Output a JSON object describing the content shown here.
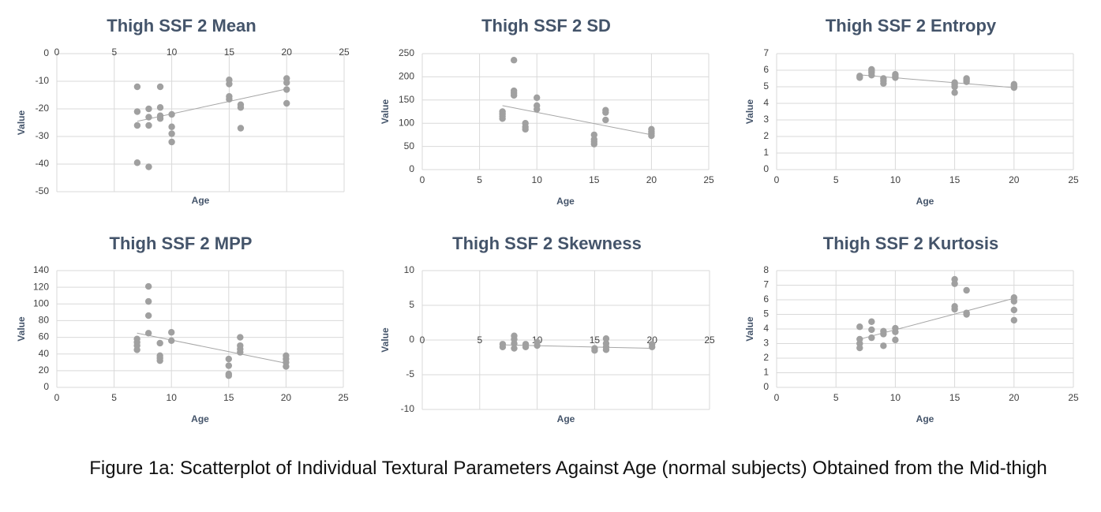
{
  "figure": {
    "caption": "Figure 1a: Scatterplot of Individual Textural Parameters Against Age (normal subjects) Obtained from the Mid-thigh"
  },
  "colors": {
    "point": "#a0a0a0",
    "trend": "#a6a6a6",
    "grid": "#d9d9d9",
    "title": "#44546a"
  },
  "chart_data": [
    {
      "type": "scatter",
      "title": "Thigh SSF 2 Mean",
      "xlabel": "Age",
      "ylabel": "Value",
      "xlim": [
        0,
        25
      ],
      "ylim": [
        -50,
        0
      ],
      "xticks": [
        0,
        5,
        10,
        15,
        20,
        25
      ],
      "yticks": [
        -50,
        -40,
        -30,
        -20,
        -10,
        0
      ],
      "xaxis_at": "top",
      "points": [
        [
          7,
          -12
        ],
        [
          7,
          -21
        ],
        [
          7,
          -26
        ],
        [
          7,
          -39.5
        ],
        [
          8,
          -20
        ],
        [
          8,
          -23
        ],
        [
          8,
          -26
        ],
        [
          8,
          -41
        ],
        [
          9,
          -12
        ],
        [
          9,
          -19.5
        ],
        [
          9,
          -22.5
        ],
        [
          9,
          -23.5
        ],
        [
          10,
          -22
        ],
        [
          10,
          -26.5
        ],
        [
          10,
          -29
        ],
        [
          10,
          -32
        ],
        [
          15,
          -9.5
        ],
        [
          15,
          -11
        ],
        [
          15,
          -15.5
        ],
        [
          15,
          -16.5
        ],
        [
          16,
          -18.5
        ],
        [
          16,
          -19.5
        ],
        [
          16,
          -27
        ],
        [
          20,
          -9
        ],
        [
          20,
          -10.5
        ],
        [
          20,
          -13
        ],
        [
          20,
          -18
        ]
      ],
      "trendline": [
        [
          7,
          -24.5
        ],
        [
          20,
          -12.8
        ]
      ]
    },
    {
      "type": "scatter",
      "title": "Thigh SSF 2 SD",
      "xlabel": "Age",
      "ylabel": "Value",
      "xlim": [
        0,
        25
      ],
      "ylim": [
        0,
        250
      ],
      "xticks": [
        0,
        5,
        10,
        15,
        20,
        25
      ],
      "yticks": [
        0,
        50,
        100,
        150,
        200,
        250
      ],
      "xaxis_at": "bottom",
      "points": [
        [
          7,
          110
        ],
        [
          7,
          115
        ],
        [
          7,
          120
        ],
        [
          7,
          125
        ],
        [
          8,
          160
        ],
        [
          8,
          165
        ],
        [
          8,
          170
        ],
        [
          8,
          236
        ],
        [
          9,
          87
        ],
        [
          9,
          92
        ],
        [
          9,
          100
        ],
        [
          10,
          130
        ],
        [
          10,
          138
        ],
        [
          10,
          155
        ],
        [
          15,
          55
        ],
        [
          15,
          60
        ],
        [
          15,
          65
        ],
        [
          15,
          75
        ],
        [
          16,
          107
        ],
        [
          16,
          123
        ],
        [
          16,
          128
        ],
        [
          20,
          73
        ],
        [
          20,
          78
        ],
        [
          20,
          82
        ],
        [
          20,
          87
        ]
      ],
      "trendline": [
        [
          7,
          138
        ],
        [
          20,
          75
        ]
      ]
    },
    {
      "type": "scatter",
      "title": "Thigh SSF 2 Entropy",
      "xlabel": "Age",
      "ylabel": "Value",
      "xlim": [
        0,
        25
      ],
      "ylim": [
        0,
        7
      ],
      "xticks": [
        0,
        5,
        10,
        15,
        20,
        25
      ],
      "yticks": [
        0,
        1,
        2,
        3,
        4,
        5,
        6,
        7
      ],
      "xaxis_at": "bottom",
      "points": [
        [
          7,
          5.55
        ],
        [
          7,
          5.65
        ],
        [
          8,
          5.7
        ],
        [
          8,
          5.85
        ],
        [
          8,
          5.95
        ],
        [
          8,
          6.05
        ],
        [
          9,
          5.2
        ],
        [
          9,
          5.35
        ],
        [
          9,
          5.5
        ],
        [
          10,
          5.55
        ],
        [
          10,
          5.65
        ],
        [
          10,
          5.75
        ],
        [
          15,
          4.65
        ],
        [
          15,
          5.0
        ],
        [
          15,
          5.15
        ],
        [
          15,
          5.25
        ],
        [
          16,
          5.3
        ],
        [
          16,
          5.4
        ],
        [
          16,
          5.5
        ],
        [
          20,
          4.95
        ],
        [
          20,
          5.05
        ],
        [
          20,
          5.15
        ]
      ],
      "trendline": [
        [
          7,
          5.72
        ],
        [
          20,
          4.95
        ]
      ]
    },
    {
      "type": "scatter",
      "title": "Thigh SSF 2 MPP",
      "xlabel": "Age",
      "ylabel": "Value",
      "xlim": [
        0,
        25
      ],
      "ylim": [
        0,
        140
      ],
      "xticks": [
        0,
        5,
        10,
        15,
        20,
        25
      ],
      "yticks": [
        0,
        20,
        40,
        60,
        80,
        100,
        120,
        140
      ],
      "xaxis_at": "bottom",
      "points": [
        [
          7,
          45
        ],
        [
          7,
          50
        ],
        [
          7,
          54
        ],
        [
          7,
          58
        ],
        [
          8,
          65
        ],
        [
          8,
          86
        ],
        [
          8,
          103
        ],
        [
          8,
          121
        ],
        [
          9,
          32
        ],
        [
          9,
          35
        ],
        [
          9,
          38
        ],
        [
          9,
          53
        ],
        [
          10,
          56
        ],
        [
          10,
          66
        ],
        [
          15,
          14
        ],
        [
          15,
          16
        ],
        [
          15,
          26
        ],
        [
          15,
          34
        ],
        [
          16,
          42
        ],
        [
          16,
          46
        ],
        [
          16,
          50
        ],
        [
          16,
          60
        ],
        [
          20,
          25
        ],
        [
          20,
          30
        ],
        [
          20,
          34
        ],
        [
          20,
          38
        ]
      ],
      "trendline": [
        [
          7,
          65
        ],
        [
          20,
          29
        ]
      ]
    },
    {
      "type": "scatter",
      "title": "Thigh SSF 2 Skewness",
      "xlabel": "Age",
      "ylabel": "Value",
      "xlim": [
        0,
        25
      ],
      "ylim": [
        -10,
        10
      ],
      "xticks": [
        0,
        5,
        10,
        15,
        20,
        25
      ],
      "yticks": [
        -10,
        -5,
        0,
        5,
        10
      ],
      "xaxis_at": "zero",
      "points": [
        [
          7,
          -0.6
        ],
        [
          7,
          -1.0
        ],
        [
          8,
          -1.2
        ],
        [
          8,
          -0.5
        ],
        [
          8,
          0.1
        ],
        [
          8,
          0.6
        ],
        [
          9,
          -0.6
        ],
        [
          9,
          -1.0
        ],
        [
          10,
          -0.3
        ],
        [
          10,
          -0.8
        ],
        [
          15,
          -1.2
        ],
        [
          15,
          -1.5
        ],
        [
          16,
          -0.5
        ],
        [
          16,
          -1.0
        ],
        [
          16,
          -1.4
        ],
        [
          16,
          0.2
        ],
        [
          20,
          -0.6
        ],
        [
          20,
          -1.0
        ]
      ],
      "trendline": [
        [
          7,
          -0.7
        ],
        [
          20,
          -1.2
        ]
      ]
    },
    {
      "type": "scatter",
      "title": "Thigh SSF 2 Kurtosis",
      "xlabel": "Age",
      "ylabel": "Value",
      "xlim": [
        0,
        25
      ],
      "ylim": [
        0,
        8
      ],
      "xticks": [
        0,
        5,
        10,
        15,
        20,
        25
      ],
      "yticks": [
        0,
        1,
        2,
        3,
        4,
        5,
        6,
        7,
        8
      ],
      "xaxis_at": "bottom",
      "points": [
        [
          7,
          2.7
        ],
        [
          7,
          3.0
        ],
        [
          7,
          3.3
        ],
        [
          7,
          4.15
        ],
        [
          8,
          3.4
        ],
        [
          8,
          3.95
        ],
        [
          8,
          4.5
        ],
        [
          9,
          2.85
        ],
        [
          9,
          3.65
        ],
        [
          9,
          3.85
        ],
        [
          10,
          3.25
        ],
        [
          10,
          3.8
        ],
        [
          10,
          4.05
        ],
        [
          15,
          5.35
        ],
        [
          15,
          5.55
        ],
        [
          15,
          7.1
        ],
        [
          15,
          7.4
        ],
        [
          16,
          5.0
        ],
        [
          16,
          5.1
        ],
        [
          16,
          6.65
        ],
        [
          20,
          4.6
        ],
        [
          20,
          5.3
        ],
        [
          20,
          5.9
        ],
        [
          20,
          6.15
        ]
      ],
      "trendline": [
        [
          7,
          3.3
        ],
        [
          20,
          6.1
        ]
      ]
    }
  ]
}
